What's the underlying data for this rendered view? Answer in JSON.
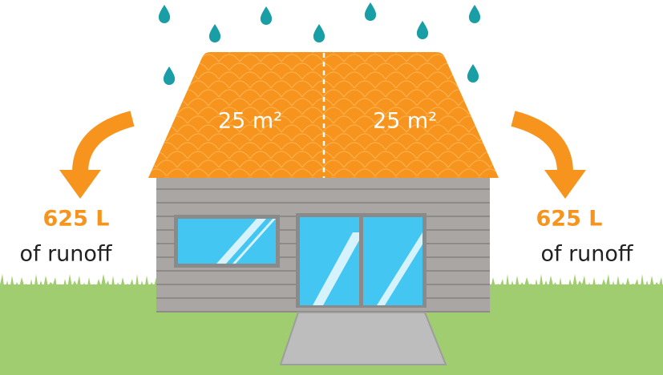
{
  "roof": {
    "left_area": "25 m²",
    "right_area": "25 m²"
  },
  "runoff": {
    "left": {
      "amount": "625 L",
      "label": "of runoff"
    },
    "right": {
      "amount": "625 L",
      "label": "of runoff"
    }
  }
}
